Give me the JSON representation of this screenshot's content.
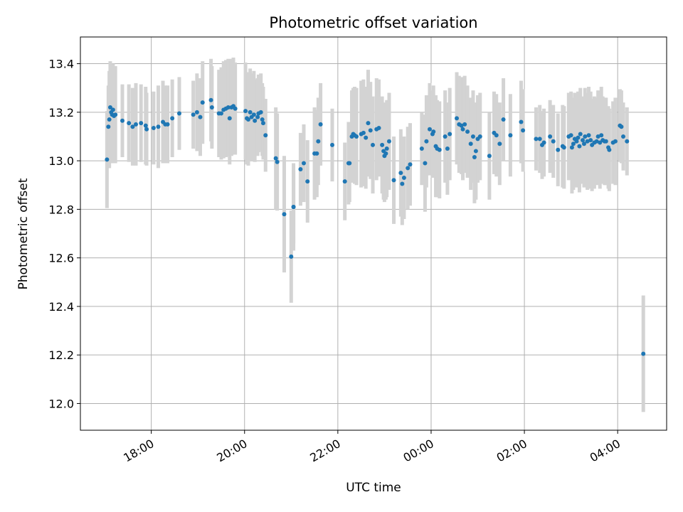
{
  "chart_data": {
    "type": "scatter",
    "title": "Photometric offset variation",
    "xlabel": "UTC time",
    "ylabel": "Photometric offset",
    "x_unit": "UTC time (hours, continuing past midnight)",
    "xlim": [
      16.48,
      29.05
    ],
    "ylim": [
      11.89,
      13.51
    ],
    "x_ticks": [
      {
        "value": 18,
        "label": "18:00"
      },
      {
        "value": 20,
        "label": "20:00"
      },
      {
        "value": 22,
        "label": "22:00"
      },
      {
        "value": 24,
        "label": "00:00"
      },
      {
        "value": 26,
        "label": "02:00"
      },
      {
        "value": 28,
        "label": "04:00"
      }
    ],
    "y_ticks": [
      {
        "value": 12.0,
        "label": "12.0"
      },
      {
        "value": 12.2,
        "label": "12.2"
      },
      {
        "value": 12.4,
        "label": "12.4"
      },
      {
        "value": 12.6,
        "label": "12.6"
      },
      {
        "value": 12.8,
        "label": "12.8"
      },
      {
        "value": 13.0,
        "label": "13.0"
      },
      {
        "value": 13.2,
        "label": "13.2"
      },
      {
        "value": 13.4,
        "label": "13.4"
      }
    ],
    "grid": true,
    "marker_color": "#1f77b4",
    "errorbar_color": "#d3d3d3",
    "points": [
      [
        17.05,
        13.005,
        0.2
      ],
      [
        17.08,
        13.14,
        0.17
      ],
      [
        17.1,
        13.17,
        0.2
      ],
      [
        17.12,
        13.22,
        0.19
      ],
      [
        17.14,
        13.2,
        0.2
      ],
      [
        17.16,
        13.19,
        0.2
      ],
      [
        17.18,
        13.21,
        0.19
      ],
      [
        17.2,
        13.185,
        0.19
      ],
      [
        17.23,
        13.19,
        0.2
      ],
      [
        17.38,
        13.165,
        0.15
      ],
      [
        17.52,
        13.155,
        0.16
      ],
      [
        17.6,
        13.14,
        0.16
      ],
      [
        17.67,
        13.15,
        0.17
      ],
      [
        17.78,
        13.155,
        0.16
      ],
      [
        17.88,
        13.145,
        0.16
      ],
      [
        17.9,
        13.13,
        0.15
      ],
      [
        18.05,
        13.135,
        0.15
      ],
      [
        18.15,
        13.14,
        0.17
      ],
      [
        18.25,
        13.16,
        0.17
      ],
      [
        18.3,
        13.15,
        0.16
      ],
      [
        18.35,
        13.15,
        0.16
      ],
      [
        18.45,
        13.175,
        0.16
      ],
      [
        18.6,
        13.195,
        0.15
      ],
      [
        18.9,
        13.19,
        0.14
      ],
      [
        18.98,
        13.2,
        0.16
      ],
      [
        19.05,
        13.18,
        0.16
      ],
      [
        19.1,
        13.24,
        0.17
      ],
      [
        19.28,
        13.25,
        0.17
      ],
      [
        19.3,
        13.22,
        0.17
      ],
      [
        19.45,
        13.195,
        0.18
      ],
      [
        19.5,
        13.195,
        0.19
      ],
      [
        19.55,
        13.21,
        0.2
      ],
      [
        19.6,
        13.215,
        0.2
      ],
      [
        19.65,
        13.22,
        0.2
      ],
      [
        19.68,
        13.175,
        0.19
      ],
      [
        19.72,
        13.22,
        0.2
      ],
      [
        19.76,
        13.225,
        0.2
      ],
      [
        19.8,
        13.215,
        0.19
      ],
      [
        20.02,
        13.205,
        0.2
      ],
      [
        20.05,
        13.175,
        0.19
      ],
      [
        20.08,
        13.17,
        0.19
      ],
      [
        20.12,
        13.2,
        0.18
      ],
      [
        20.15,
        13.18,
        0.18
      ],
      [
        20.2,
        13.19,
        0.18
      ],
      [
        20.22,
        13.165,
        0.17
      ],
      [
        20.28,
        13.18,
        0.16
      ],
      [
        20.3,
        13.195,
        0.16
      ],
      [
        20.35,
        13.2,
        0.16
      ],
      [
        20.38,
        13.17,
        0.15
      ],
      [
        20.4,
        13.155,
        0.15
      ],
      [
        20.45,
        13.105,
        0.15
      ],
      [
        20.67,
        13.01,
        0.21
      ],
      [
        20.7,
        12.995,
        0.2
      ],
      [
        20.85,
        12.78,
        0.24
      ],
      [
        21.0,
        12.605,
        0.19
      ],
      [
        21.05,
        12.81,
        0.18
      ],
      [
        21.05,
        12.81,
        0.15
      ],
      [
        21.2,
        12.965,
        0.15
      ],
      [
        21.27,
        12.99,
        0.16
      ],
      [
        21.35,
        12.915,
        0.17
      ],
      [
        21.5,
        13.03,
        0.19
      ],
      [
        21.55,
        13.03,
        0.18
      ],
      [
        21.58,
        13.08,
        0.18
      ],
      [
        21.63,
        13.15,
        0.17
      ],
      [
        21.88,
        13.065,
        0.15
      ],
      [
        22.15,
        12.915,
        0.16
      ],
      [
        22.23,
        12.99,
        0.17
      ],
      [
        22.25,
        12.99,
        0.16
      ],
      [
        22.3,
        13.1,
        0.19
      ],
      [
        22.33,
        13.11,
        0.19
      ],
      [
        22.36,
        13.105,
        0.2
      ],
      [
        22.4,
        13.1,
        0.2
      ],
      [
        22.5,
        13.11,
        0.22
      ],
      [
        22.55,
        13.115,
        0.22
      ],
      [
        22.6,
        13.095,
        0.21
      ],
      [
        22.65,
        13.155,
        0.22
      ],
      [
        22.7,
        13.125,
        0.2
      ],
      [
        22.75,
        13.065,
        0.2
      ],
      [
        22.83,
        13.13,
        0.21
      ],
      [
        22.88,
        13.135,
        0.2
      ],
      [
        22.95,
        13.065,
        0.2
      ],
      [
        22.98,
        13.04,
        0.2
      ],
      [
        23.0,
        13.02,
        0.19
      ],
      [
        23.03,
        13.03,
        0.19
      ],
      [
        23.05,
        13.05,
        0.2
      ],
      [
        23.1,
        13.08,
        0.2
      ],
      [
        23.2,
        12.92,
        0.18
      ],
      [
        23.35,
        12.95,
        0.18
      ],
      [
        23.38,
        12.905,
        0.17
      ],
      [
        23.42,
        12.93,
        0.17
      ],
      [
        23.5,
        12.97,
        0.17
      ],
      [
        23.55,
        12.985,
        0.17
      ],
      [
        23.8,
        13.05,
        0.15
      ],
      [
        23.87,
        12.99,
        0.2
      ],
      [
        23.9,
        13.08,
        0.19
      ],
      [
        23.97,
        13.13,
        0.19
      ],
      [
        24.03,
        13.11,
        0.18
      ],
      [
        24.05,
        13.12,
        0.19
      ],
      [
        24.1,
        13.06,
        0.21
      ],
      [
        24.13,
        13.05,
        0.2
      ],
      [
        24.18,
        13.045,
        0.2
      ],
      [
        24.3,
        13.1,
        0.19
      ],
      [
        24.35,
        13.05,
        0.19
      ],
      [
        24.4,
        13.11,
        0.19
      ],
      [
        24.55,
        13.175,
        0.19
      ],
      [
        24.6,
        13.15,
        0.2
      ],
      [
        24.65,
        13.145,
        0.2
      ],
      [
        24.68,
        13.13,
        0.21
      ],
      [
        24.72,
        13.15,
        0.2
      ],
      [
        24.78,
        13.12,
        0.19
      ],
      [
        24.85,
        13.07,
        0.19
      ],
      [
        24.9,
        13.1,
        0.19
      ],
      [
        24.93,
        13.015,
        0.19
      ],
      [
        24.96,
        13.04,
        0.2
      ],
      [
        25.0,
        13.09,
        0.18
      ],
      [
        25.05,
        13.1,
        0.18
      ],
      [
        25.25,
        13.02,
        0.18
      ],
      [
        25.35,
        13.115,
        0.17
      ],
      [
        25.4,
        13.105,
        0.17
      ],
      [
        25.47,
        13.07,
        0.17
      ],
      [
        25.55,
        13.17,
        0.17
      ],
      [
        25.7,
        13.105,
        0.17
      ],
      [
        25.93,
        13.16,
        0.17
      ],
      [
        25.97,
        13.125,
        0.17
      ],
      [
        26.25,
        13.09,
        0.13
      ],
      [
        26.33,
        13.09,
        0.14
      ],
      [
        26.38,
        13.065,
        0.14
      ],
      [
        26.42,
        13.075,
        0.14
      ],
      [
        26.55,
        13.1,
        0.15
      ],
      [
        26.62,
        13.08,
        0.15
      ],
      [
        26.72,
        13.045,
        0.15
      ],
      [
        26.82,
        13.06,
        0.17
      ],
      [
        26.85,
        13.055,
        0.17
      ],
      [
        26.95,
        13.1,
        0.18
      ],
      [
        27.0,
        13.105,
        0.18
      ],
      [
        27.02,
        13.055,
        0.19
      ],
      [
        27.05,
        13.07,
        0.19
      ],
      [
        27.08,
        13.09,
        0.19
      ],
      [
        27.12,
        13.08,
        0.19
      ],
      [
        27.15,
        13.095,
        0.19
      ],
      [
        27.18,
        13.06,
        0.19
      ],
      [
        27.2,
        13.11,
        0.19
      ],
      [
        27.25,
        13.085,
        0.18
      ],
      [
        27.28,
        13.07,
        0.18
      ],
      [
        27.3,
        13.1,
        0.2
      ],
      [
        27.35,
        13.08,
        0.2
      ],
      [
        27.38,
        13.105,
        0.2
      ],
      [
        27.42,
        13.085,
        0.2
      ],
      [
        27.45,
        13.065,
        0.19
      ],
      [
        27.5,
        13.075,
        0.19
      ],
      [
        27.55,
        13.08,
        0.18
      ],
      [
        27.58,
        13.1,
        0.19
      ],
      [
        27.62,
        13.075,
        0.19
      ],
      [
        27.65,
        13.105,
        0.2
      ],
      [
        27.68,
        13.085,
        0.18
      ],
      [
        27.72,
        13.08,
        0.18
      ],
      [
        27.75,
        13.08,
        0.18
      ],
      [
        27.8,
        13.055,
        0.17
      ],
      [
        27.82,
        13.045,
        0.17
      ],
      [
        27.9,
        13.075,
        0.17
      ],
      [
        27.95,
        13.08,
        0.18
      ],
      [
        28.05,
        13.145,
        0.15
      ],
      [
        28.08,
        13.14,
        0.15
      ],
      [
        28.12,
        13.1,
        0.14
      ],
      [
        28.2,
        13.08,
        0.14
      ],
      [
        28.55,
        12.205,
        0.24
      ]
    ]
  }
}
